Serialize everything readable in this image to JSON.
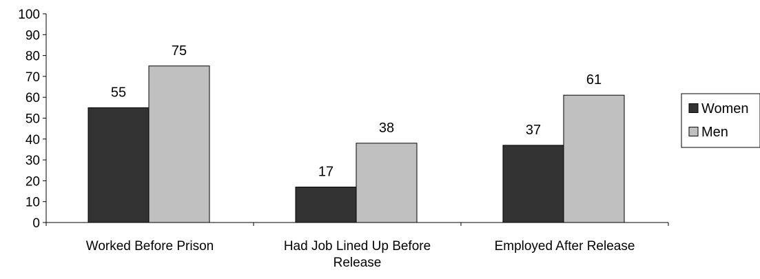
{
  "chart_data": {
    "type": "bar",
    "categories": [
      [
        "Worked Before Prison"
      ],
      [
        "Had Job Lined Up Before",
        "Release"
      ],
      [
        "Employed After Release"
      ]
    ],
    "series": [
      {
        "name": "Women",
        "values": [
          55,
          17,
          37
        ],
        "color": "#333333"
      },
      {
        "name": "Men",
        "values": [
          75,
          38,
          61
        ],
        "color": "#c0c0c0"
      }
    ],
    "ylim": [
      0,
      100
    ],
    "yticks": [
      0,
      10,
      20,
      30,
      40,
      50,
      60,
      70,
      80,
      90,
      100
    ],
    "data_labels": true,
    "grid": false,
    "legend_position": "right"
  }
}
